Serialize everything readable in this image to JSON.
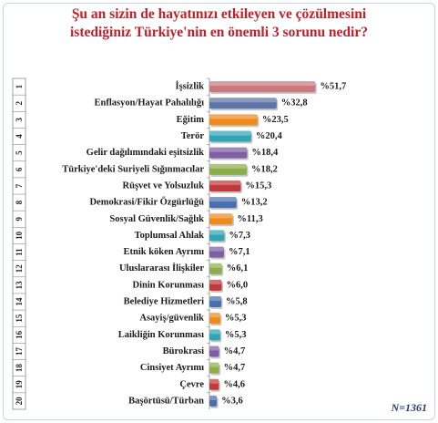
{
  "title_line1": "Şu an sizin de hayatınızı etkileyen ve çözülmesini",
  "title_line2": "istediğiniz Türkiye'nin en önemli 3 sorunu nedir?",
  "footnote": "N=1361",
  "chart_data": {
    "type": "bar",
    "orientation": "horizontal",
    "value_prefix": "%",
    "xlim": [
      0,
      60
    ],
    "grid": false,
    "categories": [
      {
        "rank": "1",
        "label": "İşsizlik",
        "value": 51.7,
        "display": "%51,7",
        "color": "#c9787e"
      },
      {
        "rank": "2",
        "label": "Enflasyon/Hayat Pahalılığı",
        "value": 32.8,
        "display": "%32,8",
        "color": "#5d74a6"
      },
      {
        "rank": "3",
        "label": "Eğitim",
        "value": 23.5,
        "display": "%23,5",
        "color": "#ef8a1f"
      },
      {
        "rank": "4",
        "label": "Terör",
        "value": 20.4,
        "display": "%20,4",
        "color": "#33a4b5"
      },
      {
        "rank": "5",
        "label": "Gelir dağılımındaki eşitsizlik",
        "value": 18.4,
        "display": "%18,4",
        "color": "#7e5fa3"
      },
      {
        "rank": "6",
        "label": "Türkiye'deki Suriyeli Sığınmacılar",
        "value": 18.2,
        "display": "%18,2",
        "color": "#8cae4a"
      },
      {
        "rank": "7",
        "label": "Rüşvet ve Yolsuzluk",
        "value": 15.3,
        "display": "%15,3",
        "color": "#c0393b"
      },
      {
        "rank": "8",
        "label": "Demokrasi/Fikir Özgürlüğü",
        "value": 13.2,
        "display": "%13,2",
        "color": "#4a6fae"
      },
      {
        "rank": "9",
        "label": "Sosyal Güvenlik/Sağlık",
        "value": 11.3,
        "display": "%11,3",
        "color": "#ef8a1f"
      },
      {
        "rank": "10",
        "label": "Toplumsal Ahlak",
        "value": 7.3,
        "display": "%7,3",
        "color": "#33a4b5"
      },
      {
        "rank": "11",
        "label": "Etnik köken Ayrımı",
        "value": 7.1,
        "display": "%7,1",
        "color": "#7e5fa3"
      },
      {
        "rank": "12",
        "label": "Uluslararası İlişkiler",
        "value": 6.1,
        "display": "%6,1",
        "color": "#8cae4a"
      },
      {
        "rank": "13",
        "label": "Dinin Korunması",
        "value": 6.0,
        "display": "%6,0",
        "color": "#c0393b"
      },
      {
        "rank": "14",
        "label": "Belediye Hizmetleri",
        "value": 5.8,
        "display": "%5,8",
        "color": "#4a6fae"
      },
      {
        "rank": "15",
        "label": "Asayiş/güvenlik",
        "value": 5.3,
        "display": "%5,3",
        "color": "#ef8a1f"
      },
      {
        "rank": "16",
        "label": "Laikliğin Korunması",
        "value": 5.3,
        "display": "%5,3",
        "color": "#33a4b5"
      },
      {
        "rank": "17",
        "label": "Bürokrasi",
        "value": 4.7,
        "display": "%4,7",
        "color": "#7e5fa3"
      },
      {
        "rank": "18",
        "label": "Cinsiyet Ayrımı",
        "value": 4.7,
        "display": "%4,7",
        "color": "#8cae4a"
      },
      {
        "rank": "19",
        "label": "Çevre",
        "value": 4.6,
        "display": "%4,6",
        "color": "#c0393b"
      },
      {
        "rank": "20",
        "label": "Başörtüsü/Türban",
        "value": 3.6,
        "display": "%3,6",
        "color": "#4a6fae"
      }
    ]
  }
}
